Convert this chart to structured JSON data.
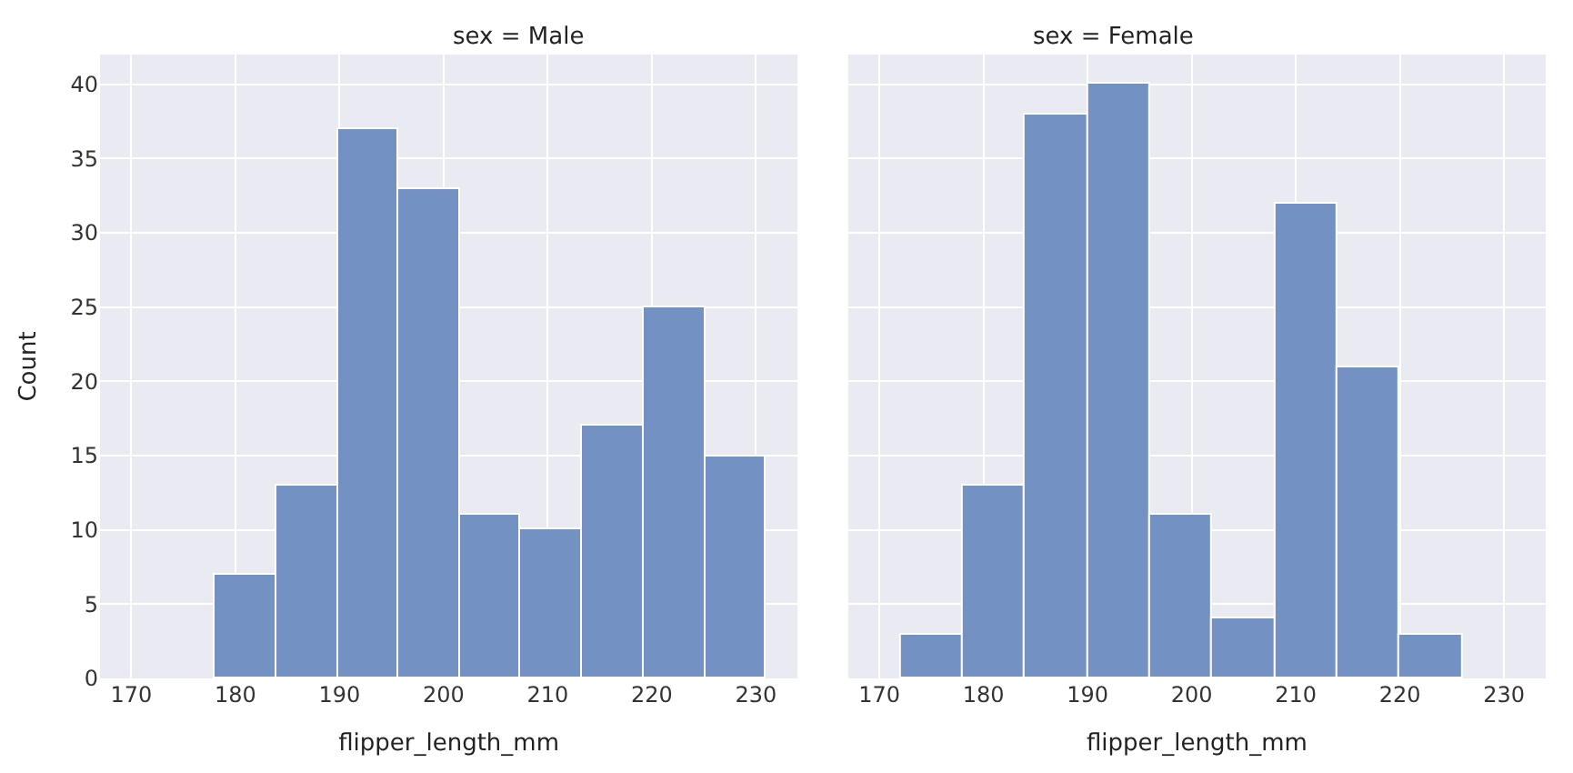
{
  "chart_data": [
    {
      "type": "histogram",
      "title": "sex = Male",
      "xlabel": "flipper_length_mm",
      "ylabel": "Count",
      "bins": [
        178,
        183.9,
        189.8,
        195.7,
        201.6,
        207.4,
        213.3,
        219.2,
        225.1,
        231
      ],
      "values": [
        7,
        13,
        37,
        33,
        11,
        10,
        17,
        25,
        15
      ],
      "color": "#7491c4",
      "xlim": [
        167,
        234
      ],
      "xticks": [
        170,
        180,
        190,
        200,
        210,
        220,
        230
      ],
      "ylim": [
        0,
        42
      ],
      "yticks": [
        0,
        5,
        10,
        15,
        20,
        25,
        30,
        35,
        40
      ],
      "grid": true
    },
    {
      "type": "histogram",
      "title": "sex = Female",
      "xlabel": "flipper_length_mm",
      "bins": [
        172,
        178,
        184,
        190,
        196,
        202,
        208,
        214,
        220,
        226
      ],
      "values": [
        3,
        13,
        38,
        40,
        11,
        4,
        32,
        21,
        3
      ],
      "color": "#7491c4",
      "xlim": [
        167,
        234
      ],
      "xticks": [
        170,
        180,
        190,
        200,
        210,
        220,
        230
      ],
      "ylim": [
        0,
        42
      ],
      "yticks": [
        0,
        5,
        10,
        15,
        20,
        25,
        30,
        35,
        40
      ],
      "grid": true,
      "tick_labels": "x"
    }
  ]
}
